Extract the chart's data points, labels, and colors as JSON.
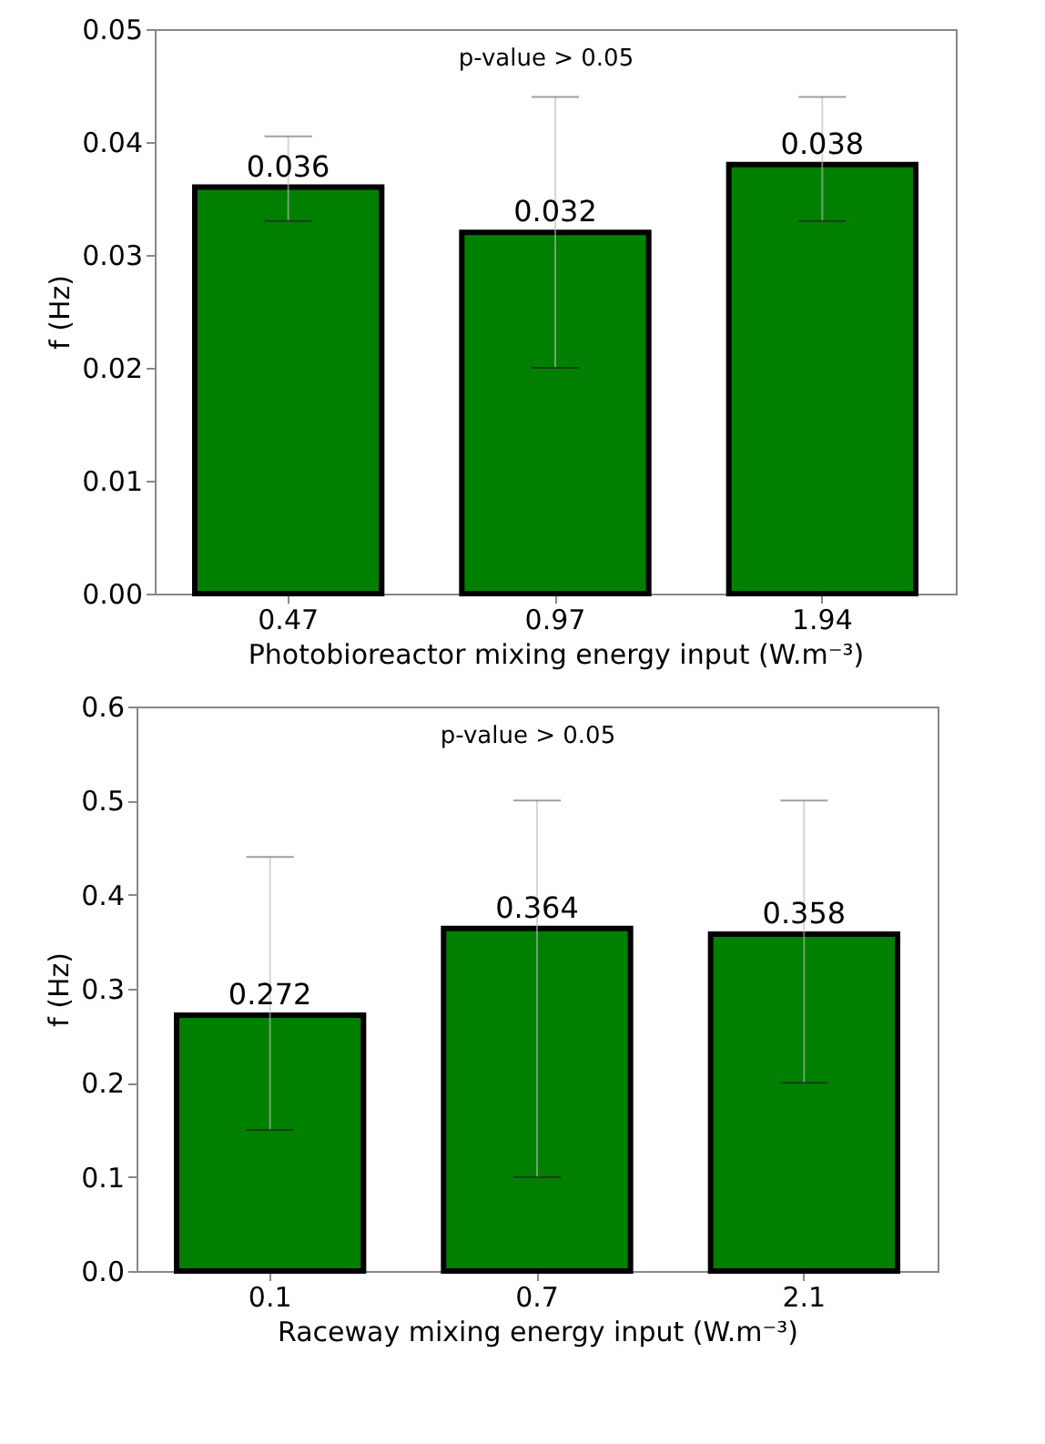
{
  "chart_data": [
    {
      "type": "bar",
      "xlabel": "Photobioreactor mixing energy input (W.m⁻³)",
      "ylabel": "f (Hz)",
      "categories": [
        "0.47",
        "0.97",
        "1.94"
      ],
      "color": "#007f00",
      "values": [
        0.036,
        0.032,
        0.038
      ],
      "errors": [
        [
          0.033,
          0.0405
        ],
        [
          0.02,
          0.044
        ],
        [
          0.033,
          0.044
        ]
      ],
      "data_labels": true,
      "ylim": [
        0,
        0.05
      ],
      "yticks": [
        {
          "value": 0,
          "label": "0.00"
        },
        0.01,
        0.02,
        0.03,
        0.04,
        0.05
      ],
      "annotations": [
        "p-value > 0.05"
      ]
    },
    {
      "type": "bar",
      "xlabel": "Raceway mixing energy input (W.m⁻³)",
      "ylabel": "f (Hz)",
      "categories": [
        "0.1",
        "0.7",
        "2.1"
      ],
      "color": "#007f00",
      "values": [
        0.272,
        0.364,
        0.358
      ],
      "errors": [
        [
          0.15,
          0.44
        ],
        [
          0.1,
          0.5
        ],
        [
          0.2,
          0.5
        ]
      ],
      "data_labels": true,
      "ylim": [
        0,
        0.6
      ],
      "yticks": [
        {
          "value": 0,
          "label": "0.0"
        },
        0.1,
        0.2,
        0.3,
        0.4,
        0.5,
        0.6
      ],
      "annotations": [
        "p-value > 0.05"
      ]
    }
  ]
}
